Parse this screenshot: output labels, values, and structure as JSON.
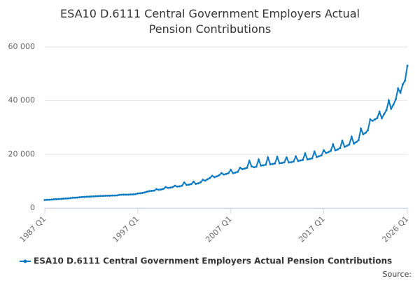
{
  "chart_data": {
    "type": "line",
    "title": "ESA10 D.6111 Central Government Employers Actual Pension Contributions",
    "source": "Source:",
    "categories": [
      "1987 Q1",
      null,
      null,
      null,
      null,
      null,
      null,
      null,
      null,
      null,
      null,
      null,
      null,
      null,
      null,
      null,
      null,
      null,
      null,
      null,
      null,
      null,
      null,
      null,
      null,
      null,
      null,
      null,
      null,
      null,
      null,
      null,
      null,
      null,
      null,
      null,
      null,
      null,
      null,
      null,
      "1997 Q1",
      null,
      null,
      null,
      null,
      null,
      null,
      null,
      null,
      null,
      null,
      null,
      null,
      null,
      null,
      null,
      null,
      null,
      null,
      null,
      null,
      null,
      null,
      null,
      null,
      null,
      null,
      null,
      null,
      null,
      null,
      null,
      null,
      null,
      null,
      null,
      null,
      null,
      null,
      null,
      "2007 Q1",
      null,
      null,
      null,
      null,
      null,
      null,
      null,
      null,
      null,
      null,
      null,
      null,
      null,
      null,
      null,
      null,
      null,
      null,
      null,
      null,
      null,
      null,
      null,
      null,
      null,
      null,
      null,
      null,
      null,
      null,
      null,
      null,
      null,
      null,
      null,
      null,
      null,
      null,
      null,
      "2017 Q1",
      null,
      null,
      null,
      null,
      null,
      null,
      null,
      null,
      null,
      null,
      null,
      null,
      null,
      null,
      null,
      null,
      null,
      null,
      null,
      null,
      null,
      null,
      null,
      null,
      null,
      null,
      null,
      null,
      null,
      null,
      null,
      null,
      null,
      null,
      null,
      "2026 Q1"
    ],
    "series": [
      {
        "name": "ESA10 D.6111 Central Government Employers Actual Pension Contributions",
        "color": "#0a7bc2",
        "values": [
          3000,
          3050,
          3100,
          3150,
          3250,
          3300,
          3350,
          3400,
          3500,
          3550,
          3600,
          3700,
          3800,
          3850,
          3900,
          4000,
          4100,
          4150,
          4200,
          4250,
          4300,
          4350,
          4400,
          4450,
          4500,
          4500,
          4550,
          4600,
          4600,
          4650,
          4650,
          4700,
          4900,
          4950,
          5000,
          5000,
          5000,
          5050,
          5100,
          5200,
          5400,
          5500,
          5600,
          5800,
          6100,
          6300,
          6400,
          6500,
          7000,
          6800,
          6900,
          7100,
          7800,
          7500,
          7600,
          7800,
          8300,
          8000,
          8100,
          8300,
          9500,
          8600,
          8700,
          8900,
          9800,
          9000,
          9200,
          9600,
          10500,
          10200,
          10700,
          11200,
          12000,
          11500,
          11800,
          12200,
          13000,
          12500,
          12700,
          13000,
          14200,
          13000,
          13200,
          13500,
          15000,
          14500,
          14700,
          15000,
          17500,
          15500,
          15200,
          15400,
          18000,
          15800,
          15900,
          16100,
          18800,
          16300,
          16400,
          16600,
          19000,
          16700,
          16800,
          17000,
          18800,
          17000,
          17100,
          17300,
          19200,
          17500,
          17700,
          17900,
          20300,
          18100,
          18300,
          18500,
          21000,
          19000,
          19300,
          19600,
          21500,
          20500,
          20800,
          21300,
          23700,
          21500,
          21800,
          22300,
          25000,
          22800,
          23200,
          23700,
          26500,
          24000,
          24600,
          25300,
          29500,
          27500,
          28000,
          29000,
          33000,
          32500,
          33000,
          33500,
          35800,
          33500,
          35000,
          36500,
          40000,
          37000,
          38500,
          40500,
          44500,
          43000,
          46000,
          47500,
          53000
        ]
      }
    ],
    "ylim": [
      0,
      60000
    ],
    "yticks": [
      0,
      {
        "value": 20000,
        "label": "20 000"
      },
      {
        "value": 40000,
        "label": "40 000"
      },
      {
        "value": 60000,
        "label": "60 000"
      }
    ],
    "grid": true
  }
}
